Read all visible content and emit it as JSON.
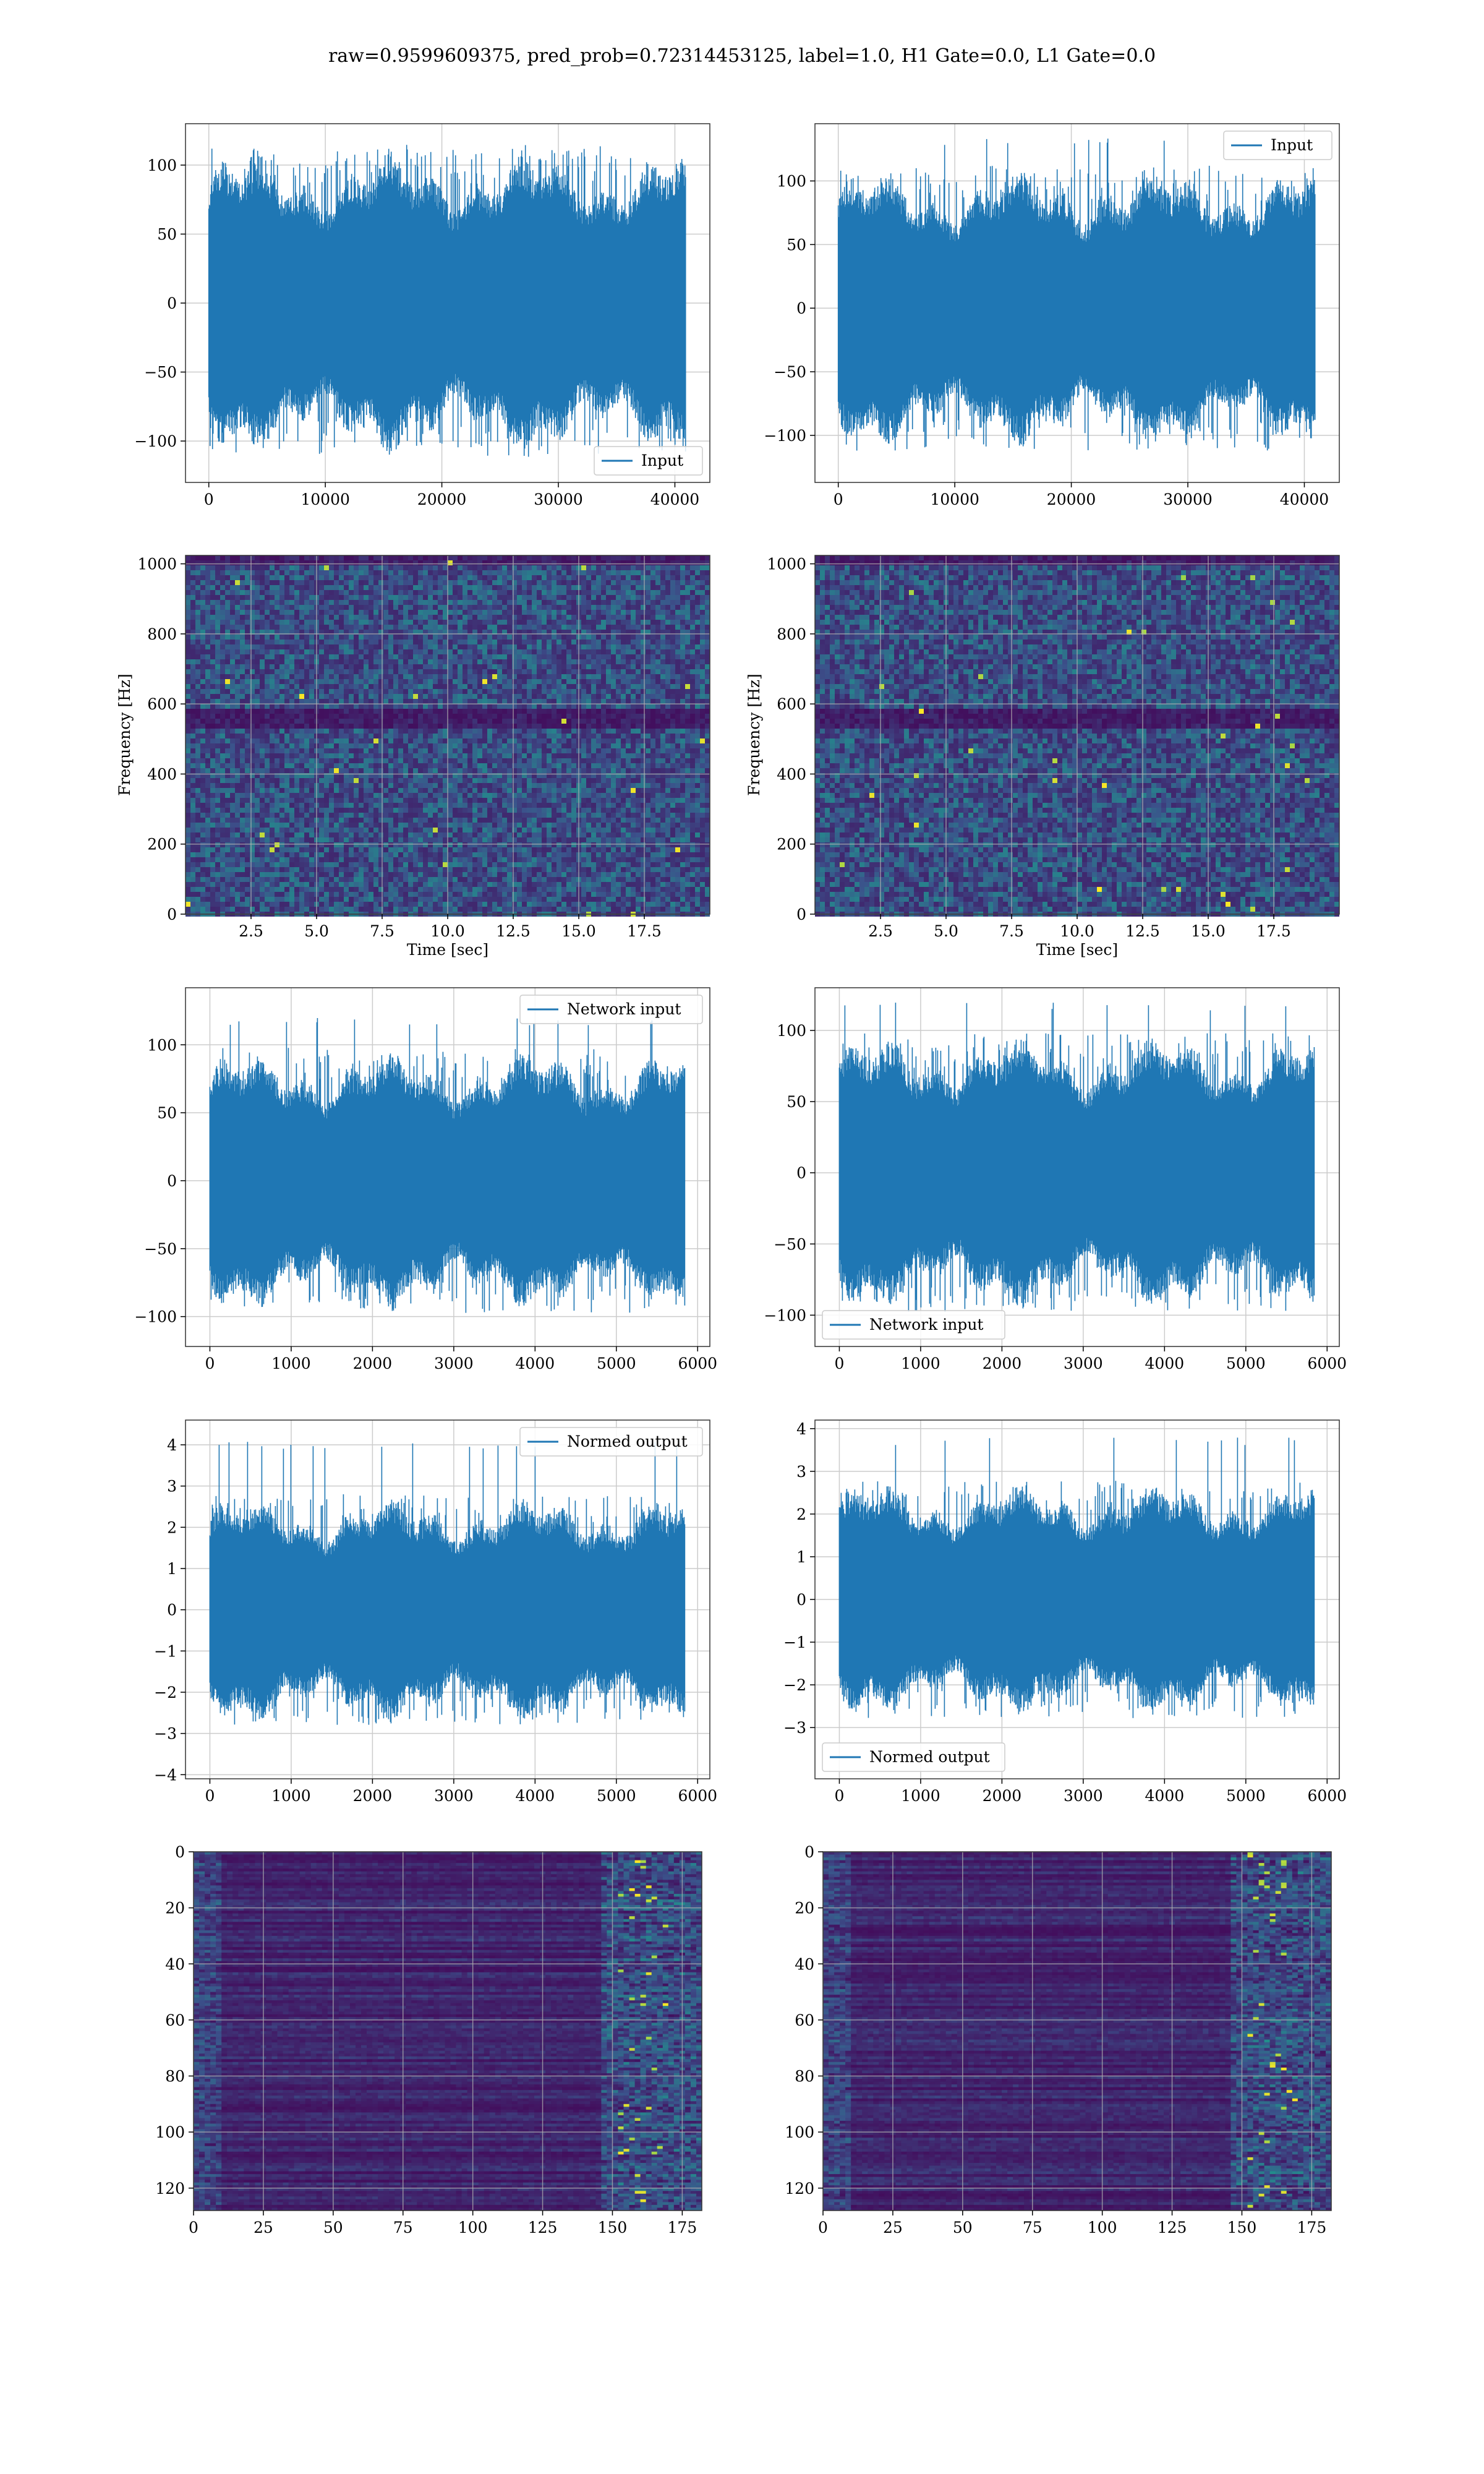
{
  "figure": {
    "title": "raw=0.9599609375, pred_prob=0.72314453125, label=1.0, H1 Gate=0.0, L1 Gate=0.0"
  },
  "colors": {
    "line": "#1f77b4",
    "grid": "#cccccc",
    "viridis_dark": "#440154",
    "viridis_mid": "#21918c",
    "viridis_bright": "#fde725"
  },
  "chart_data": [
    {
      "id": "h1-input",
      "type": "line",
      "series": [
        {
          "name": "Input",
          "n_samples": 40960,
          "approx_amplitude": 80,
          "peak": 115
        }
      ],
      "xlim": [
        -2000,
        43000
      ],
      "ylim": [
        -130,
        130
      ],
      "xticks": [
        0,
        10000,
        20000,
        30000,
        40000
      ],
      "yticks": [
        -100,
        -50,
        0,
        50,
        100
      ],
      "xlabel": "",
      "ylabel": "",
      "legend": "lower-right",
      "grid": true
    },
    {
      "id": "l1-input",
      "type": "line",
      "series": [
        {
          "name": "Input",
          "n_samples": 40960,
          "approx_amplitude": 80,
          "peak": 135
        }
      ],
      "xlim": [
        -2000,
        43000
      ],
      "ylim": [
        -137,
        145
      ],
      "xticks": [
        0,
        10000,
        20000,
        30000,
        40000
      ],
      "yticks": [
        -100,
        -50,
        0,
        50,
        100
      ],
      "xlabel": "",
      "ylabel": "",
      "legend": "upper-right",
      "grid": true
    },
    {
      "id": "h1-spectrogram",
      "type": "heatmap",
      "xlim": [
        0,
        20
      ],
      "ylim": [
        0,
        1024
      ],
      "xticks": [
        "2.5",
        "5.0",
        "7.5",
        "10.0",
        "12.5",
        "15.0",
        "17.5"
      ],
      "yticks": [
        0,
        200,
        400,
        600,
        800,
        1000
      ],
      "xlabel": "Time [sec]",
      "ylabel": "Frequency [Hz]",
      "colormap": "viridis",
      "grid": true
    },
    {
      "id": "l1-spectrogram",
      "type": "heatmap",
      "xlim": [
        0,
        20
      ],
      "ylim": [
        0,
        1024
      ],
      "xticks": [
        "2.5",
        "5.0",
        "7.5",
        "10.0",
        "12.5",
        "15.0",
        "17.5"
      ],
      "yticks": [
        0,
        200,
        400,
        600,
        800,
        1000
      ],
      "xlabel": "Time [sec]",
      "ylabel": "Frequency [Hz]",
      "colormap": "viridis",
      "grid": true
    },
    {
      "id": "h1-network-input",
      "type": "line",
      "series": [
        {
          "name": "Network input",
          "n_samples": 5850,
          "approx_amplitude": 70,
          "peak": 120
        }
      ],
      "xlim": [
        -300,
        6150
      ],
      "ylim": [
        -122,
        142
      ],
      "xticks": [
        0,
        1000,
        2000,
        3000,
        4000,
        5000,
        6000
      ],
      "yticks": [
        -100,
        -50,
        0,
        50,
        100
      ],
      "xlabel": "",
      "ylabel": "",
      "legend": "upper-right",
      "grid": true
    },
    {
      "id": "l1-network-input",
      "type": "line",
      "series": [
        {
          "name": "Network input",
          "n_samples": 5850,
          "approx_amplitude": 70,
          "peak": 120
        }
      ],
      "xlim": [
        -300,
        6150
      ],
      "ylim": [
        -122,
        130
      ],
      "xticks": [
        0,
        1000,
        2000,
        3000,
        4000,
        5000,
        6000
      ],
      "yticks": [
        -100,
        -50,
        0,
        50,
        100
      ],
      "xlabel": "",
      "ylabel": "",
      "legend": "lower-left",
      "grid": true
    },
    {
      "id": "h1-normed-output",
      "type": "line",
      "series": [
        {
          "name": "Normed output",
          "n_samples": 5850,
          "approx_amplitude": 2,
          "peak": 4.1
        }
      ],
      "xlim": [
        -300,
        6150
      ],
      "ylim": [
        -4.1,
        4.6
      ],
      "xticks": [
        0,
        1000,
        2000,
        3000,
        4000,
        5000,
        6000
      ],
      "yticks": [
        -4,
        -3,
        -2,
        -1,
        0,
        1,
        2,
        3,
        4
      ],
      "xlabel": "",
      "ylabel": "",
      "legend": "upper-right",
      "grid": true
    },
    {
      "id": "l1-normed-output",
      "type": "line",
      "series": [
        {
          "name": "Normed output",
          "n_samples": 5850,
          "approx_amplitude": 2,
          "peak": 3.8
        }
      ],
      "xlim": [
        -300,
        6150
      ],
      "ylim": [
        -4.2,
        4.2
      ],
      "xticks": [
        0,
        1000,
        2000,
        3000,
        4000,
        5000,
        6000
      ],
      "yticks": [
        -3,
        -2,
        -1,
        0,
        1,
        2,
        3,
        4
      ],
      "xlabel": "",
      "ylabel": "",
      "legend": "lower-left",
      "grid": true
    },
    {
      "id": "h1-feature-map",
      "type": "heatmap",
      "xlim": [
        0,
        182
      ],
      "ylim": [
        128,
        0
      ],
      "xticks": [
        0,
        25,
        50,
        75,
        100,
        125,
        150,
        175
      ],
      "yticks": [
        0,
        20,
        40,
        60,
        80,
        100,
        120
      ],
      "xlabel": "",
      "ylabel": "",
      "colormap": "viridis",
      "grid": true
    },
    {
      "id": "l1-feature-map",
      "type": "heatmap",
      "xlim": [
        0,
        182
      ],
      "ylim": [
        128,
        0
      ],
      "xticks": [
        0,
        25,
        50,
        75,
        100,
        125,
        150,
        175
      ],
      "yticks": [
        0,
        20,
        40,
        60,
        80,
        100,
        120
      ],
      "xlabel": "",
      "ylabel": "",
      "colormap": "viridis",
      "grid": true
    }
  ]
}
